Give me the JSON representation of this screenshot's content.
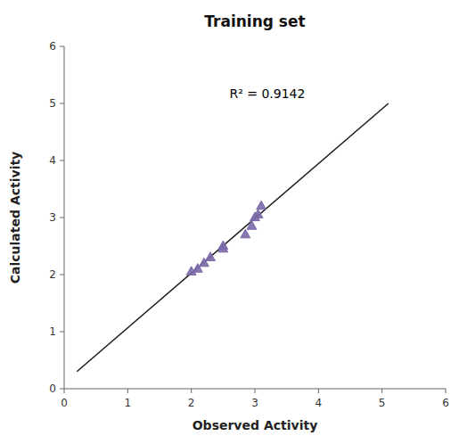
{
  "chart_data": {
    "type": "scatter",
    "title": "Training set",
    "xlabel": "Observed Activity",
    "ylabel": "Calculated Activity",
    "annotations": [
      {
        "text": "R² = 0.9142",
        "x": 2.6,
        "y": 5.1
      }
    ],
    "xlim": [
      0,
      6
    ],
    "ylim": [
      0,
      6
    ],
    "xticks": [
      0,
      1,
      2,
      3,
      4,
      5,
      6
    ],
    "yticks": [
      0,
      1,
      2,
      3,
      4,
      5,
      6
    ],
    "grid": false,
    "series": [
      {
        "type": "line",
        "color": "#1a1a1a",
        "x": [
          0.2,
          5.1
        ],
        "values": [
          0.3,
          5.0
        ]
      },
      {
        "type": "scatter",
        "marker": "triangle",
        "color": "#7B68A8",
        "x": [
          2.0,
          2.1,
          2.2,
          2.3,
          2.5,
          2.5,
          2.85,
          2.95,
          3.0,
          3.05,
          3.1
        ],
        "values": [
          2.05,
          2.1,
          2.2,
          2.3,
          2.45,
          2.5,
          2.7,
          2.85,
          3.0,
          3.05,
          3.2
        ]
      }
    ]
  }
}
